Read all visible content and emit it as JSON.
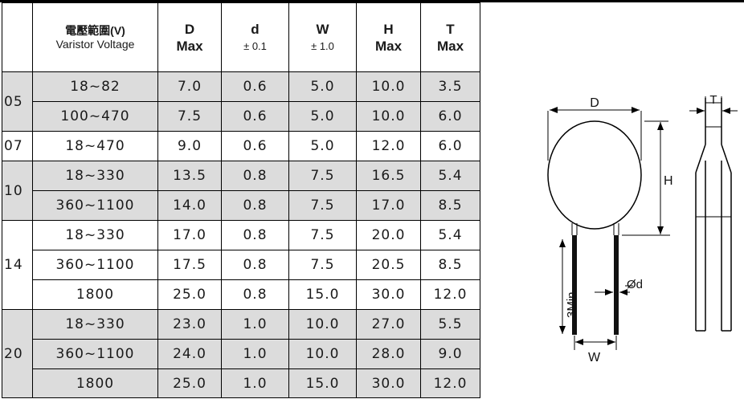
{
  "table": {
    "headers": {
      "voltage_cn": "電壓範圍(V)",
      "voltage_en": "Varistor Voltage",
      "d_big": "D",
      "d_big_sub": "Max",
      "d_small": "d",
      "d_small_sub": "± 0.1",
      "w": "W",
      "w_sub": "± 1.0",
      "h": "H",
      "h_sub": "Max",
      "t": "T",
      "t_sub": "Max"
    },
    "groups": [
      {
        "size": "05",
        "rows": [
          {
            "voltage": "18~82",
            "D": "7.0",
            "d": "0.6",
            "W": "5.0",
            "H": "10.0",
            "T": "3.5"
          },
          {
            "voltage": "100~470",
            "D": "7.5",
            "d": "0.6",
            "W": "5.0",
            "H": "10.0",
            "T": "6.0"
          }
        ]
      },
      {
        "size": "07",
        "rows": [
          {
            "voltage": "18~470",
            "D": "9.0",
            "d": "0.6",
            "W": "5.0",
            "H": "12.0",
            "T": "6.0"
          }
        ]
      },
      {
        "size": "10",
        "rows": [
          {
            "voltage": "18~330",
            "D": "13.5",
            "d": "0.8",
            "W": "7.5",
            "H": "16.5",
            "T": "5.4"
          },
          {
            "voltage": "360~1100",
            "D": "14.0",
            "d": "0.8",
            "W": "7.5",
            "H": "17.0",
            "T": "8.5"
          }
        ]
      },
      {
        "size": "14",
        "rows": [
          {
            "voltage": "18~330",
            "D": "17.0",
            "d": "0.8",
            "W": "7.5",
            "H": "20.0",
            "T": "5.4"
          },
          {
            "voltage": "360~1100",
            "D": "17.5",
            "d": "0.8",
            "W": "7.5",
            "H": "20.5",
            "T": "8.5"
          },
          {
            "voltage": "1800",
            "D": "25.0",
            "d": "0.8",
            "W": "15.0",
            "H": "30.0",
            "T": "12.0"
          }
        ]
      },
      {
        "size": "20",
        "rows": [
          {
            "voltage": "18~330",
            "D": "23.0",
            "d": "1.0",
            "W": "10.0",
            "H": "27.0",
            "T": "5.5"
          },
          {
            "voltage": "360~1100",
            "D": "24.0",
            "d": "1.0",
            "W": "10.0",
            "H": "28.0",
            "T": "9.0"
          },
          {
            "voltage": "1800",
            "D": "25.0",
            "d": "1.0",
            "W": "15.0",
            "H": "30.0",
            "T": "12.0"
          }
        ]
      }
    ]
  },
  "diagram": {
    "label_D": "D",
    "label_T": "T",
    "label_H": "H",
    "label_min": "3Min",
    "label_lead": "Ød",
    "label_W": "W"
  },
  "colors": {
    "shaded_row": "#dcdcdc",
    "line": "#000000"
  }
}
